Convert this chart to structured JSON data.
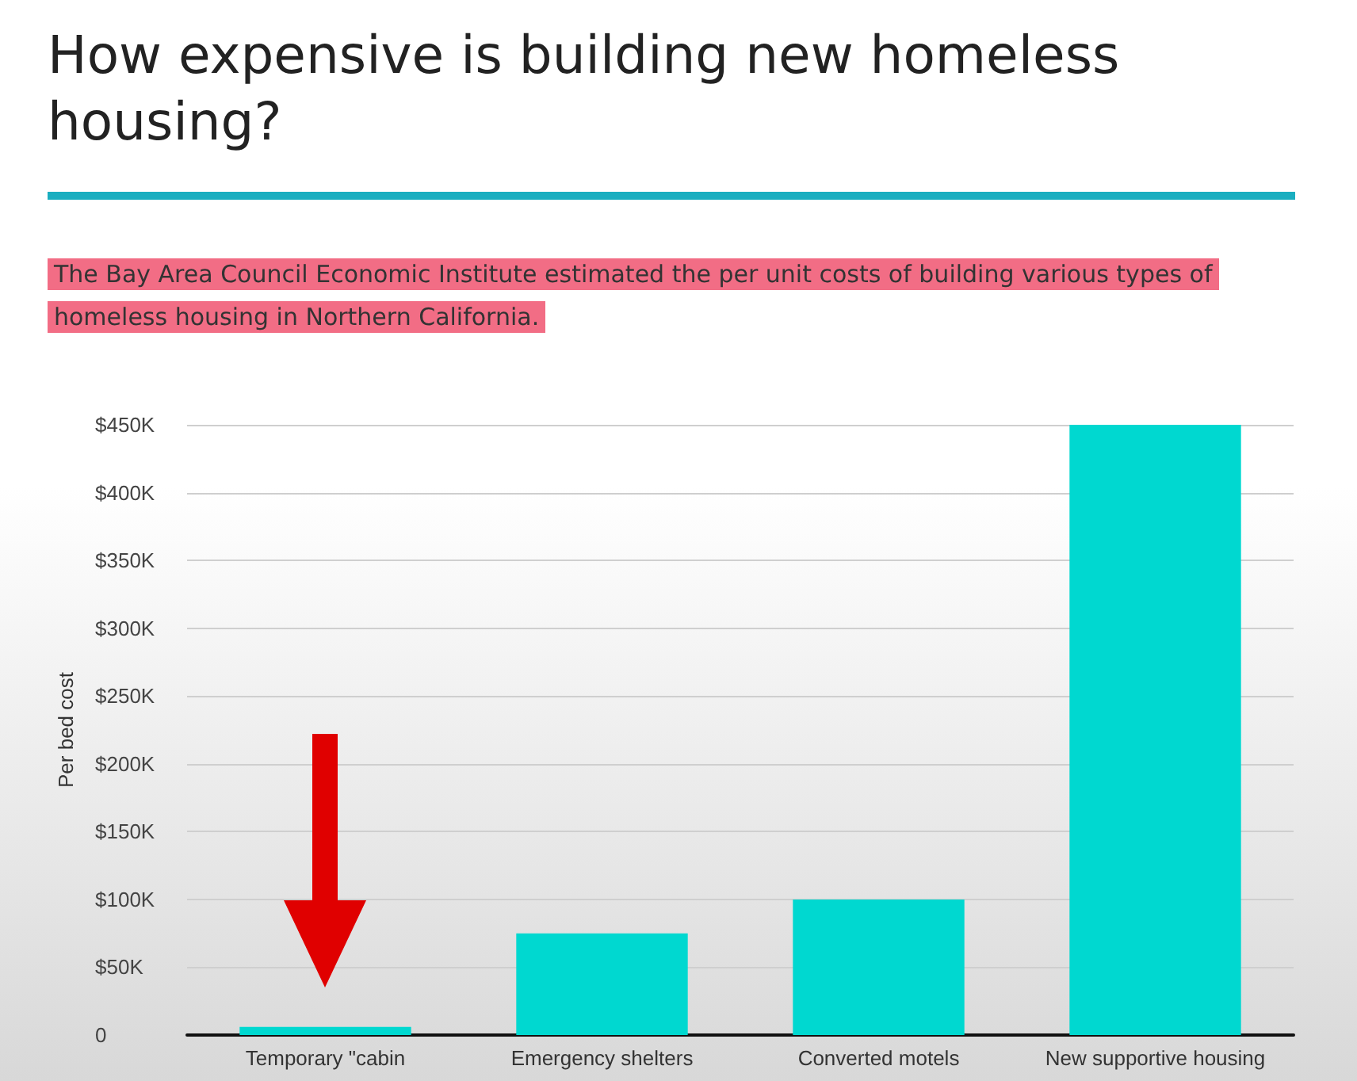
{
  "chart_data": {
    "type": "bar",
    "title": "How expensive is building new homeless housing?",
    "subtitle": "The Bay Area Council Economic Institute estimated the per unit costs of building various types of homeless housing in Northern California.",
    "ylabel": "Per bed cost",
    "categories": [
      "Temporary \"cabin",
      "Emergency shelters",
      "Converted motels",
      "New supportive housing"
    ],
    "values": [
      6000,
      75000,
      100000,
      450000
    ],
    "color": "#00d8d0",
    "ylim": [
      0,
      450000
    ],
    "yticks": [
      {
        "value": 0,
        "label": "0"
      },
      {
        "value": 50000,
        "label": "$50K"
      },
      {
        "value": 100000,
        "label": "$100K"
      },
      {
        "value": 150000,
        "label": "$150K"
      },
      {
        "value": 200000,
        "label": "$200K"
      },
      {
        "value": 250000,
        "label": "$250K"
      },
      {
        "value": 300000,
        "label": "$300K"
      },
      {
        "value": 350000,
        "label": "$350K"
      },
      {
        "value": 400000,
        "label": "$400K"
      },
      {
        "value": 450000,
        "label": "$450K"
      }
    ],
    "grid": "y"
  }
}
